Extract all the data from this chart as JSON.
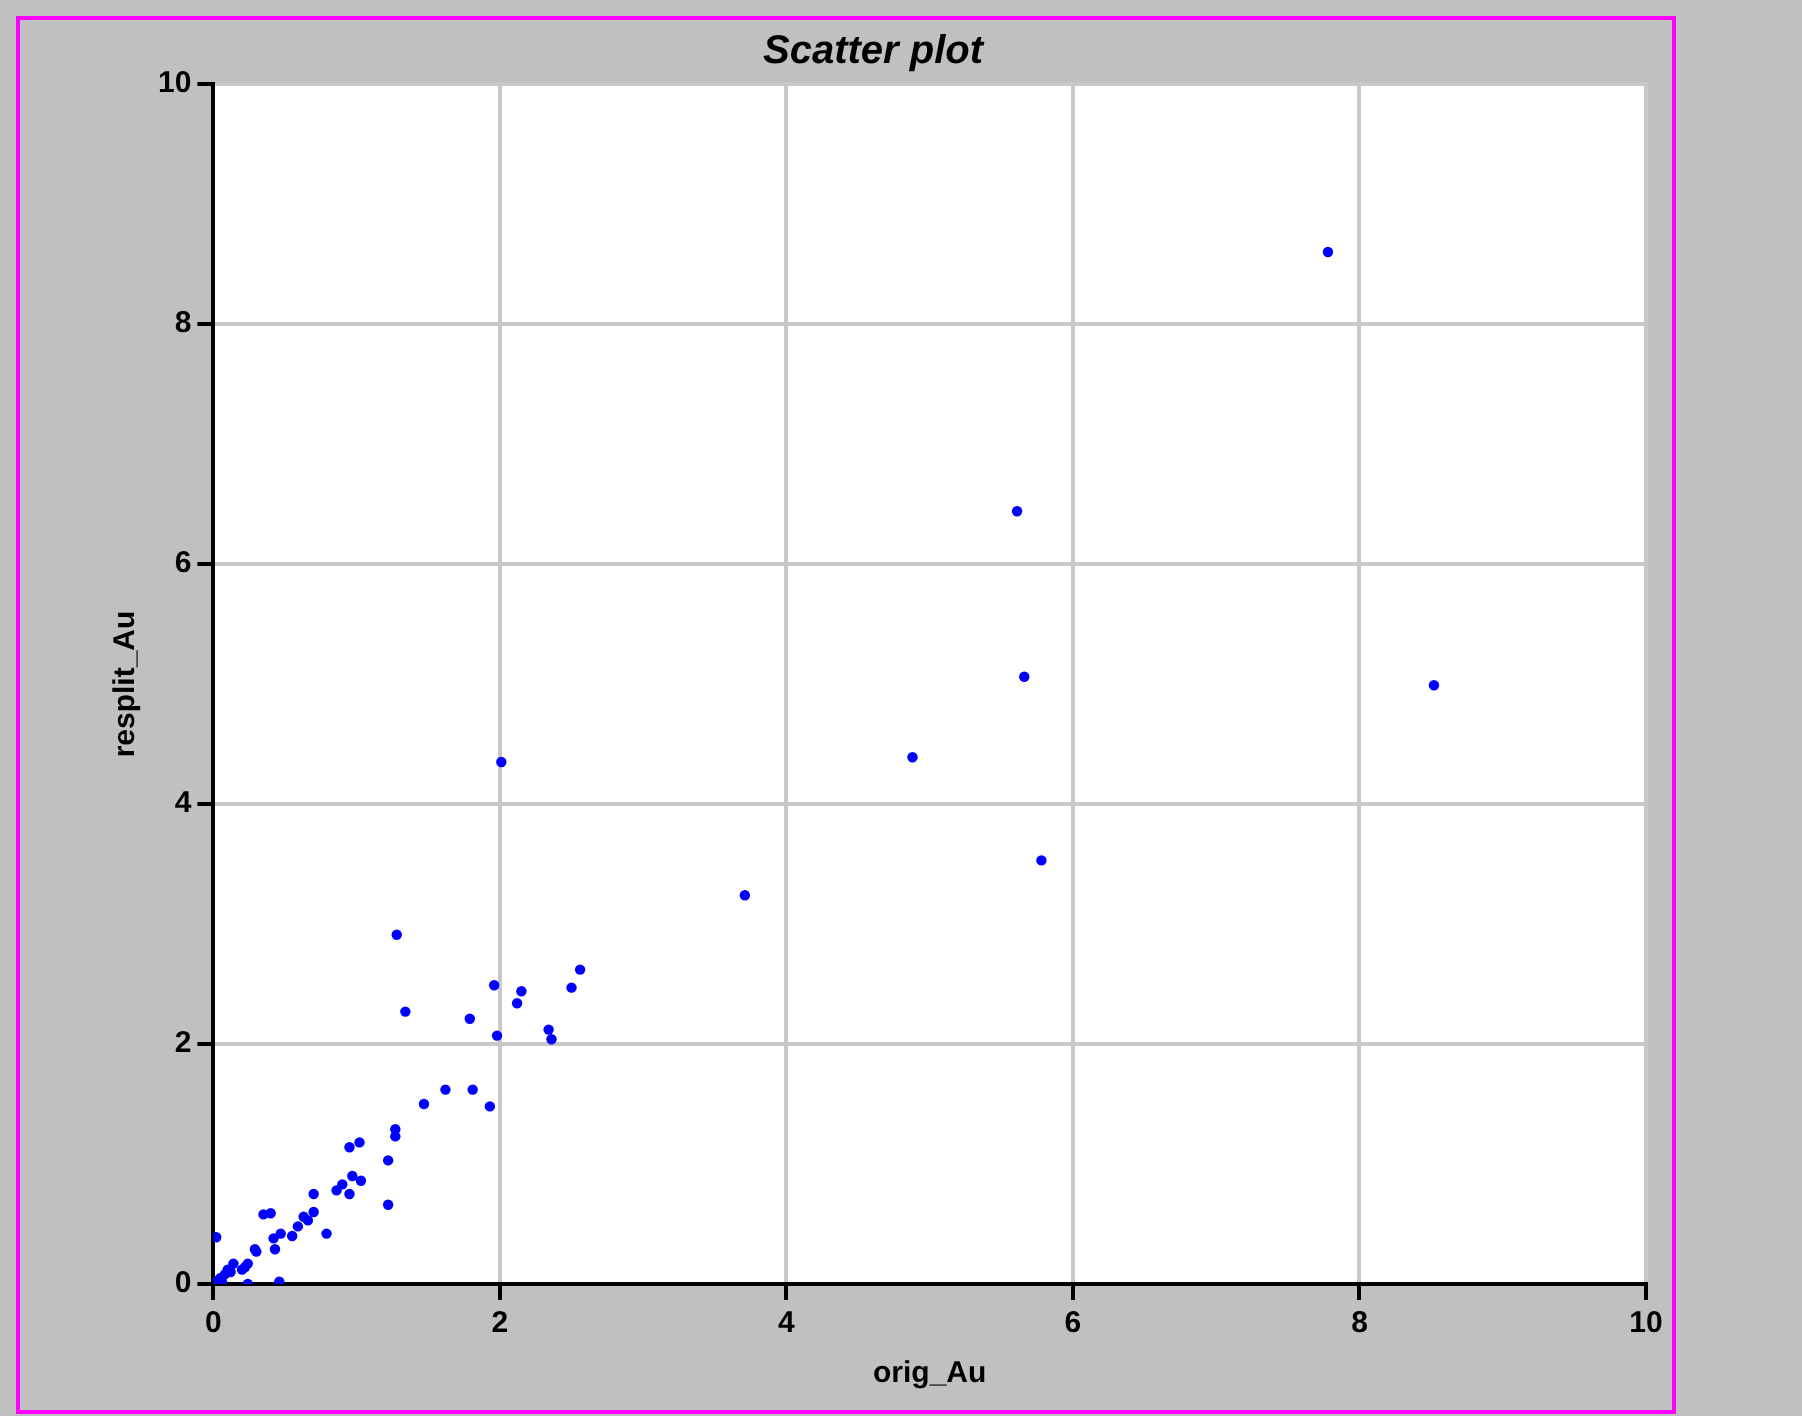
{
  "chart_data": {
    "type": "scatter",
    "title": "Scatter plot",
    "xlabel": "orig_Au",
    "ylabel": "resplit_Au",
    "xlim": [
      0,
      10
    ],
    "xticks": [
      0,
      2,
      4,
      6,
      8,
      10
    ],
    "ylim": [
      0,
      10
    ],
    "yticks": [
      0,
      2,
      4,
      6,
      8,
      10
    ],
    "grid": true,
    "legend": false,
    "marker": "circle",
    "series": [
      {
        "color": "#0000ff",
        "x": [
          2.01,
          1.28,
          1.34,
          1.96,
          2.15,
          2.12,
          1.79,
          1.98,
          2.34,
          2.36,
          2.5,
          2.56,
          1.62,
          1.81,
          1.93,
          1.47,
          1.27,
          1.27,
          1.22,
          1.22,
          0.95,
          1.02,
          0.97,
          1.03,
          0.9,
          0.86,
          0.95,
          0.7,
          0.7,
          0.63,
          0.66,
          0.59,
          0.55,
          0.79,
          0.35,
          0.4,
          0.47,
          0.42,
          0.43,
          0.29,
          0.3,
          0.02,
          0.46,
          0.24,
          0.24,
          0.2,
          0.14,
          0.1,
          0.08,
          0.05,
          0.06,
          0.22,
          0.12,
          0.03,
          3.71,
          4.88,
          5.61,
          5.66,
          5.78,
          7.78,
          8.52
        ],
        "values": [
          4.35,
          2.91,
          2.27,
          2.49,
          2.44,
          2.34,
          2.21,
          2.07,
          2.12,
          2.04,
          2.47,
          2.62,
          1.62,
          1.62,
          1.48,
          1.5,
          1.29,
          1.23,
          1.03,
          0.66,
          1.14,
          1.18,
          0.9,
          0.86,
          0.83,
          0.78,
          0.75,
          0.75,
          0.6,
          0.56,
          0.53,
          0.48,
          0.4,
          0.42,
          0.58,
          0.59,
          0.42,
          0.38,
          0.29,
          0.29,
          0.27,
          0.39,
          0.02,
          0.0,
          0.17,
          0.12,
          0.17,
          0.12,
          0.08,
          0.05,
          0.02,
          0.14,
          0.1,
          0.03,
          3.24,
          4.39,
          6.44,
          5.06,
          3.53,
          8.6,
          4.99
        ]
      }
    ]
  }
}
